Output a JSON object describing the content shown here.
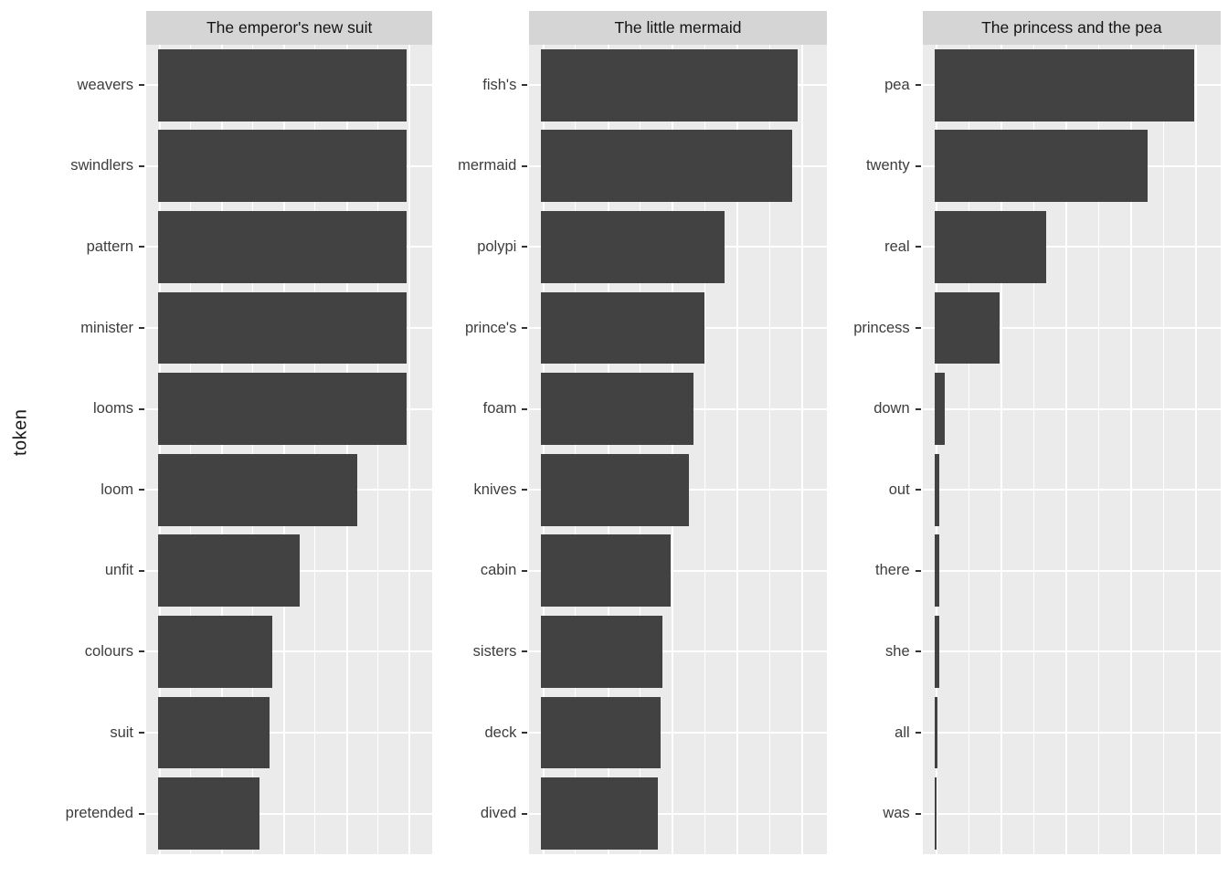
{
  "chart_data": {
    "type": "bar",
    "orientation": "horizontal",
    "title": "",
    "xlabel": "",
    "ylabel": "token",
    "xlim": [
      0,
      1
    ],
    "grid": true,
    "legend": false,
    "bar_color": "#424242",
    "panel_bg": "#EBEBEB",
    "strip_bg": "#D5D5D5",
    "facets": [
      {
        "title": "The emperor's new suit",
        "tokens": [
          "weavers",
          "swindlers",
          "pattern",
          "minister",
          "looms",
          "loom",
          "unfit",
          "colours",
          "suit",
          "pretended"
        ],
        "values": [
          1.0,
          1.0,
          1.0,
          1.0,
          1.0,
          0.8,
          0.57,
          0.46,
          0.45,
          0.41
        ]
      },
      {
        "title": "The little mermaid",
        "tokens": [
          "fish's",
          "mermaid",
          "polypi",
          "prince's",
          "foam",
          "knives",
          "cabin",
          "sisters",
          "deck",
          "dived"
        ],
        "values": [
          0.99,
          0.97,
          0.71,
          0.63,
          0.59,
          0.57,
          0.5,
          0.47,
          0.46,
          0.45
        ]
      },
      {
        "title": "The princess and the pea",
        "tokens": [
          "pea",
          "twenty",
          "real",
          "princess",
          "down",
          "out",
          "there",
          "she",
          "all",
          "was"
        ],
        "values": [
          1.0,
          0.82,
          0.43,
          0.25,
          0.04,
          0.02,
          0.017,
          0.017,
          0.01,
          0.008
        ]
      }
    ]
  }
}
